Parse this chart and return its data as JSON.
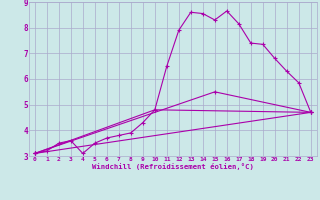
{
  "background_color": "#cce8e8",
  "grid_color": "#aaaacc",
  "line_color": "#aa00aa",
  "xlabel": "Windchill (Refroidissement éolien,°C)",
  "xlim": [
    -0.5,
    23.5
  ],
  "ylim": [
    3,
    9
  ],
  "xtick_labels": [
    "0",
    "1",
    "2",
    "3",
    "4",
    "5",
    "6",
    "7",
    "8",
    "9",
    "10",
    "11",
    "12",
    "13",
    "14",
    "15",
    "16",
    "17",
    "18",
    "19",
    "20",
    "21",
    "22",
    "23"
  ],
  "xtick_positions": [
    0,
    1,
    2,
    3,
    4,
    5,
    6,
    7,
    8,
    9,
    10,
    11,
    12,
    13,
    14,
    15,
    16,
    17,
    18,
    19,
    20,
    21,
    22,
    23
  ],
  "yticks": [
    3,
    4,
    5,
    6,
    7,
    8,
    9
  ],
  "series": [
    {
      "x": [
        0,
        1,
        2,
        3,
        4,
        5,
        6,
        7,
        8,
        9,
        10,
        11,
        12,
        13,
        14,
        15,
        16,
        17,
        18,
        19,
        20,
        21,
        22,
        23
      ],
      "y": [
        3.1,
        3.2,
        3.5,
        3.6,
        3.1,
        3.5,
        3.7,
        3.8,
        3.9,
        4.3,
        4.8,
        6.5,
        7.9,
        8.6,
        8.55,
        8.3,
        8.65,
        8.15,
        7.4,
        7.35,
        6.8,
        6.3,
        5.85,
        4.7
      ]
    },
    {
      "x": [
        0,
        23
      ],
      "y": [
        3.1,
        4.7
      ]
    },
    {
      "x": [
        0,
        10,
        23
      ],
      "y": [
        3.1,
        4.8,
        4.7
      ]
    },
    {
      "x": [
        0,
        15,
        23
      ],
      "y": [
        3.1,
        5.5,
        4.7
      ]
    }
  ]
}
